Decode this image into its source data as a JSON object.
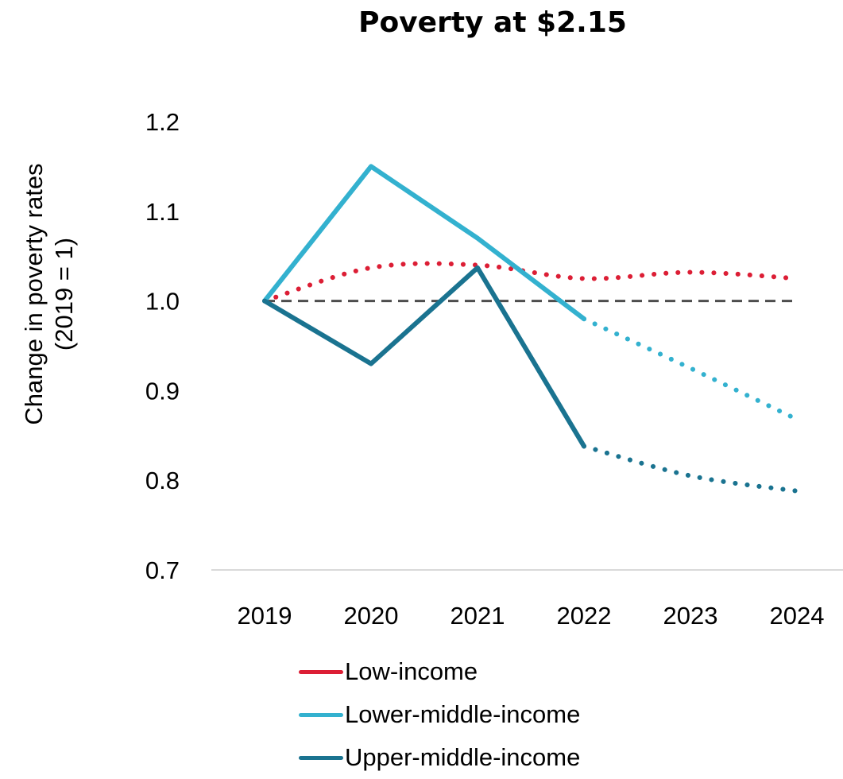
{
  "chart_data": {
    "type": "line",
    "title": "Poverty at $2.15",
    "ylabel": "Change in poverty rates (2019 = 1)",
    "xlabel": "",
    "categories": [
      "2019",
      "2020",
      "2021",
      "2022",
      "2023",
      "2024"
    ],
    "y_ticks": [
      "1.2",
      "1.1",
      "1.0",
      "0.9",
      "0.8",
      "0.7"
    ],
    "ylim": [
      0.7,
      1.2
    ],
    "reference_line": {
      "value": 1.0,
      "style": "dashed",
      "color": "#4d4d4d"
    },
    "grid": false,
    "legend_position": "bottom",
    "series": [
      {
        "name": "Low-income",
        "color": "#dc1e35",
        "values": [
          1.0,
          1.037,
          1.04,
          1.025,
          1.032,
          1.025
        ],
        "projected_from_index": 0,
        "smooth": true
      },
      {
        "name": "Lower-middle-income",
        "color": "#33b1cf",
        "values": [
          1.0,
          1.15,
          1.07,
          0.98,
          0.925,
          0.868
        ],
        "projected_from_index": 3
      },
      {
        "name": "Upper-middle-income",
        "color": "#1a7390",
        "values": [
          1.0,
          0.93,
          1.037,
          0.838,
          0.805,
          0.788
        ],
        "projected_from_index": 3
      }
    ]
  }
}
